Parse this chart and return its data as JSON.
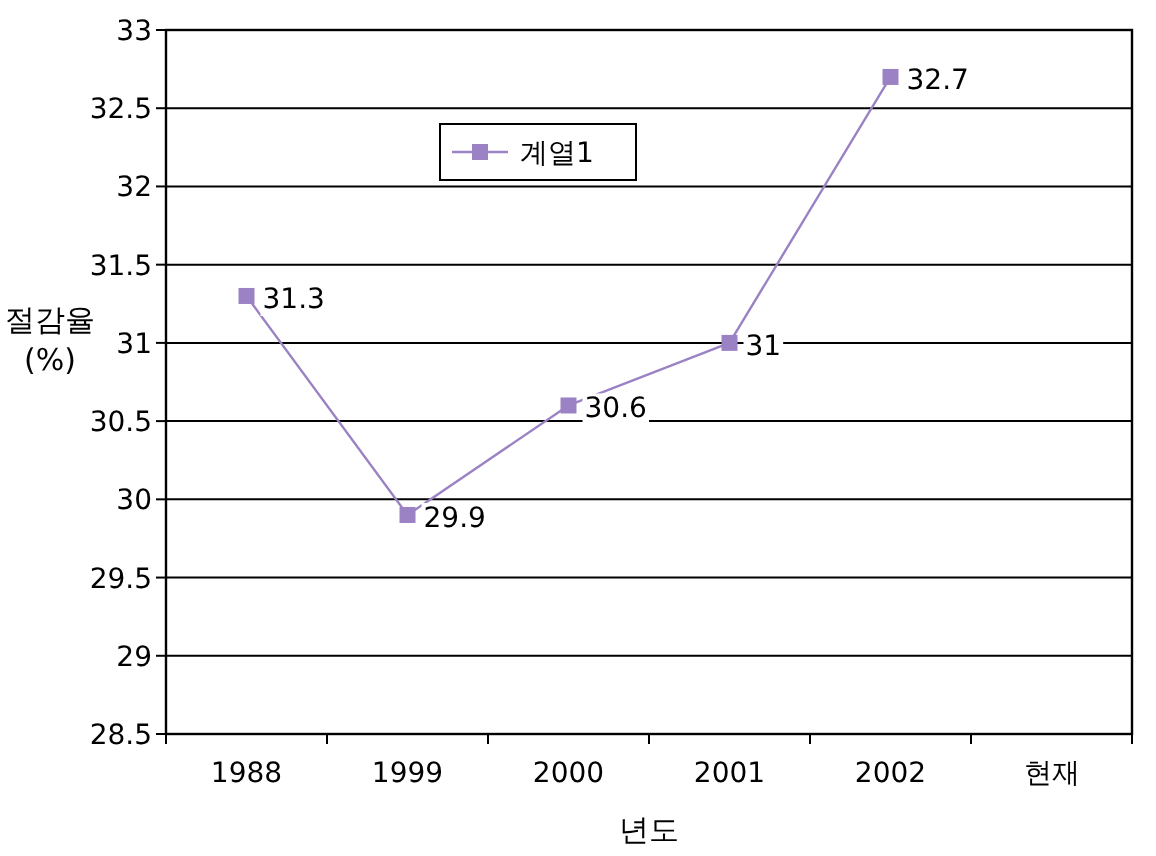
{
  "chart_data": {
    "type": "line",
    "xlabel": "년도",
    "ylabel": "절감율 (%)",
    "categories": [
      "1988",
      "1999",
      "2000",
      "2001",
      "2002",
      "현재"
    ],
    "series": [
      {
        "name": "계열1",
        "color": "#9b82c4",
        "values": [
          31.3,
          29.9,
          30.6,
          31,
          32.7,
          null
        ]
      }
    ],
    "ylim": [
      28.5,
      33
    ],
    "yticks": [
      28.5,
      29,
      29.5,
      30,
      30.5,
      31,
      31.5,
      32,
      32.5,
      33
    ],
    "grid": "y",
    "legend": "top left",
    "marker": "square",
    "line_style": "solid",
    "data_labels": true
  }
}
